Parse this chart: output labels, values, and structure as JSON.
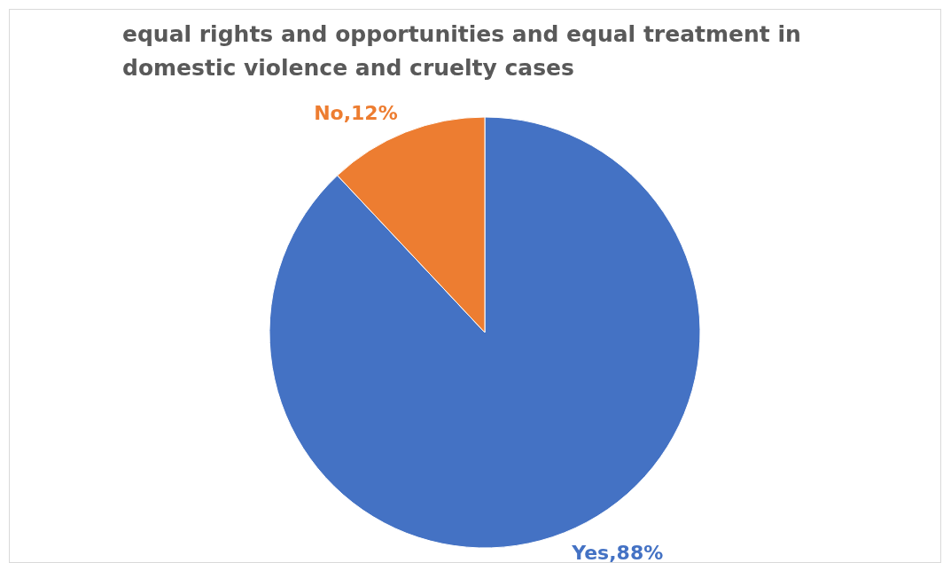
{
  "chart_data": {
    "type": "pie",
    "title": "equal rights and opportunities and equal treatment in domestic violence and cruelty cases",
    "categories": [
      "Yes",
      "No"
    ],
    "values": [
      88,
      12
    ],
    "colors": [
      "#4472c4",
      "#ed7d31"
    ],
    "value_labels": [
      ",88%",
      ",12%"
    ],
    "legend": false
  }
}
